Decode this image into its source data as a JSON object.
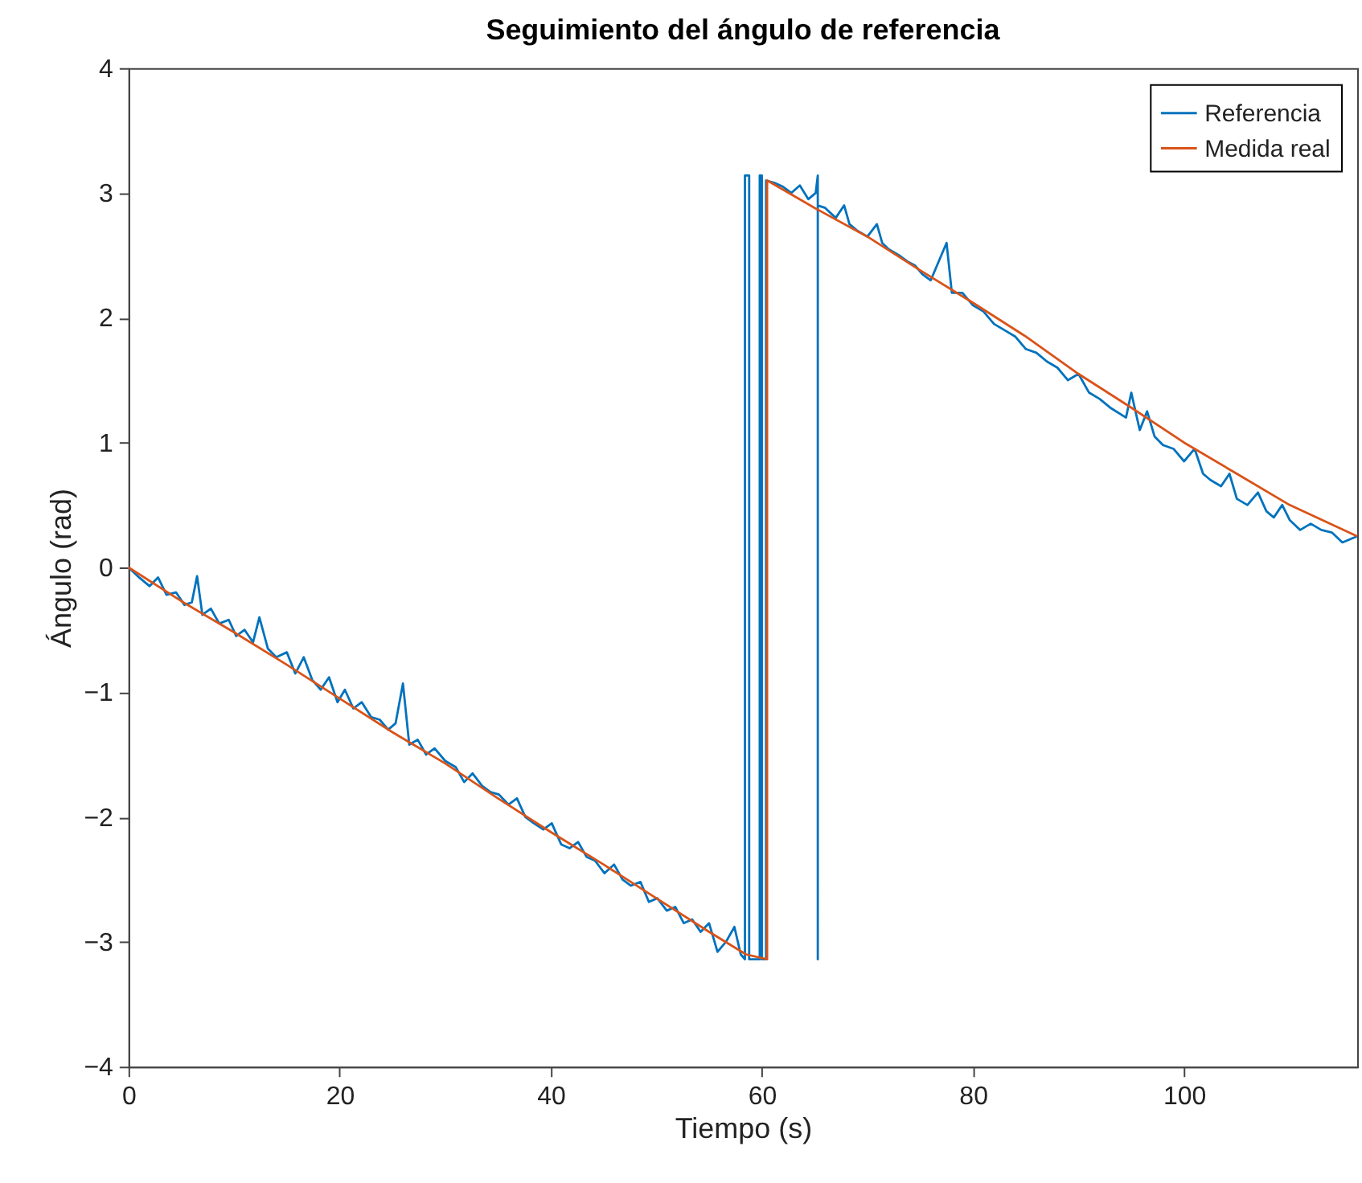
{
  "chart_data": {
    "type": "line",
    "title": "Seguimiento del ángulo de referencia",
    "xlabel": "Tiempo (s)",
    "ylabel": "Ángulo (rad)",
    "xlim": [
      0,
      116.4
    ],
    "ylim": [
      -4,
      4
    ],
    "xticks": [
      0,
      20,
      40,
      60,
      80,
      100
    ],
    "yticks": [
      -4,
      -3,
      -2,
      -1,
      0,
      1,
      2,
      3,
      4
    ],
    "grid": false,
    "legend": "top right",
    "marker": "none",
    "line_style": "solid",
    "series": [
      {
        "name": "Referencia",
        "color": "#0072bd",
        "x": [
          0,
          1,
          2,
          2.8,
          3.6,
          4.5,
          5.3,
          6.0,
          6.5,
          7.0,
          7.8,
          8.6,
          9.5,
          10.2,
          11,
          11.8,
          12.4,
          13.2,
          14,
          15,
          15.8,
          16.6,
          17.4,
          18.2,
          19,
          19.8,
          20.5,
          21.3,
          22.1,
          23,
          23.8,
          24.6,
          25.3,
          26,
          26.6,
          27.4,
          28.2,
          29,
          30,
          31,
          31.8,
          32.6,
          33.5,
          34.3,
          35.1,
          36,
          36.8,
          37.6,
          38.4,
          39.3,
          40.1,
          41,
          41.8,
          42.6,
          43.4,
          44.2,
          45.1,
          46,
          46.8,
          47.6,
          48.5,
          49.3,
          50.1,
          51,
          51.8,
          52.6,
          53.4,
          54.2,
          55,
          55.8,
          56.6,
          57.4,
          58,
          58.4,
          58.4,
          58.8,
          58.8,
          59.8,
          59.8,
          60.0,
          60.0,
          60.4,
          60.4,
          61.2,
          62,
          62.8,
          63.6,
          64.4,
          65.1,
          65.3,
          65.3,
          65.3,
          66,
          67,
          67.8,
          68.3,
          69,
          70,
          70.9,
          71.4,
          72,
          73,
          73.8,
          74.5,
          75.2,
          76,
          77.5,
          78,
          79,
          80,
          81,
          82,
          83,
          84,
          85,
          86,
          87,
          88,
          89,
          90,
          91,
          92,
          93,
          94.5,
          95,
          95.8,
          96.5,
          97.2,
          98,
          99,
          100,
          101,
          101.8,
          102.5,
          103.5,
          104.3,
          105,
          106,
          107,
          107.8,
          108.5,
          109.3,
          110,
          111,
          112,
          113,
          114,
          115,
          116.4
        ],
        "values": [
          0,
          -0.08,
          -0.15,
          -0.08,
          -0.22,
          -0.2,
          -0.3,
          -0.28,
          -0.07,
          -0.38,
          -0.33,
          -0.45,
          -0.42,
          -0.55,
          -0.5,
          -0.6,
          -0.4,
          -0.65,
          -0.72,
          -0.68,
          -0.85,
          -0.72,
          -0.9,
          -0.98,
          -0.88,
          -1.08,
          -0.98,
          -1.13,
          -1.08,
          -1.2,
          -1.22,
          -1.3,
          -1.25,
          -0.93,
          -1.42,
          -1.38,
          -1.5,
          -1.45,
          -1.55,
          -1.6,
          -1.72,
          -1.65,
          -1.75,
          -1.8,
          -1.82,
          -1.9,
          -1.85,
          -2.0,
          -2.05,
          -2.1,
          -2.05,
          -2.22,
          -2.25,
          -2.2,
          -2.32,
          -2.35,
          -2.45,
          -2.38,
          -2.5,
          -2.55,
          -2.52,
          -2.68,
          -2.65,
          -2.75,
          -2.72,
          -2.85,
          -2.82,
          -2.92,
          -2.85,
          -3.08,
          -3.0,
          -2.88,
          -3.1,
          -3.14,
          3.14,
          3.14,
          -3.14,
          -3.14,
          3.14,
          3.14,
          -3.14,
          -3.14,
          3.1,
          3.08,
          3.05,
          3.0,
          3.06,
          2.95,
          3.0,
          3.14,
          -3.14,
          2.9,
          2.88,
          2.8,
          2.9,
          2.75,
          2.7,
          2.65,
          2.75,
          2.6,
          2.55,
          2.5,
          2.45,
          2.42,
          2.35,
          2.3,
          2.6,
          2.2,
          2.2,
          2.1,
          2.05,
          1.95,
          1.9,
          1.85,
          1.75,
          1.72,
          1.65,
          1.6,
          1.5,
          1.55,
          1.4,
          1.35,
          1.28,
          1.2,
          1.4,
          1.1,
          1.25,
          1.05,
          0.98,
          0.95,
          0.85,
          0.95,
          0.75,
          0.7,
          0.65,
          0.75,
          0.55,
          0.5,
          0.6,
          0.45,
          0.4,
          0.5,
          0.38,
          0.3,
          0.35,
          0.3,
          0.28,
          0.2,
          0.25
        ]
      },
      {
        "name": "Medida real",
        "color": "#d95319",
        "x": [
          0,
          5,
          10,
          15,
          20,
          25,
          30,
          35,
          40,
          45,
          50,
          55,
          58.5,
          60.5,
          60.5,
          65,
          70,
          75,
          80,
          85,
          90,
          95,
          100,
          105,
          110,
          116.4
        ],
        "values": [
          0,
          -0.27,
          -0.52,
          -0.78,
          -1.05,
          -1.32,
          -1.57,
          -1.85,
          -2.12,
          -2.38,
          -2.65,
          -2.92,
          -3.1,
          -3.14,
          3.1,
          2.88,
          2.65,
          2.38,
          2.12,
          1.85,
          1.55,
          1.28,
          1.0,
          0.75,
          0.5,
          0.25
        ]
      }
    ]
  }
}
